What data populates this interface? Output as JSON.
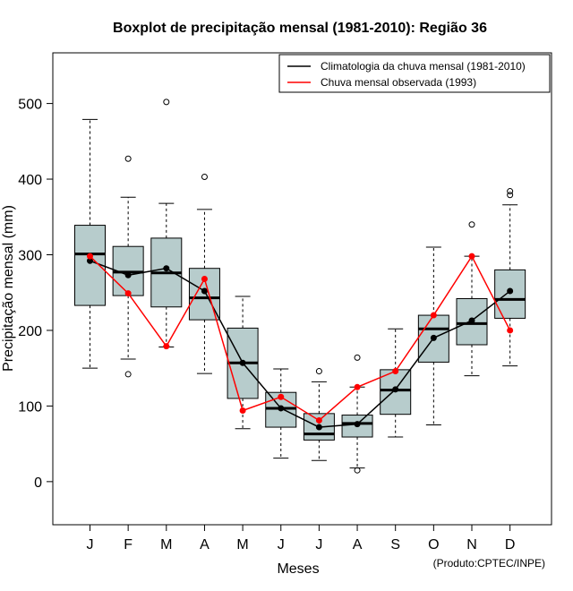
{
  "chart_data": {
    "type": "boxplot",
    "title": "Boxplot de precipitação mensal (1981-2010): Região 36",
    "xlabel": "Meses",
    "ylabel": "Precipitação mensal (mm)",
    "ylim": [
      -57,
      567
    ],
    "yticks": [
      0,
      100,
      200,
      300,
      400,
      500
    ],
    "categories": [
      "J",
      "F",
      "M",
      "A",
      "M",
      "J",
      "J",
      "A",
      "S",
      "O",
      "N",
      "D"
    ],
    "boxes": [
      {
        "whisker_low": 150,
        "q1": 233,
        "median": 301,
        "q3": 339,
        "whisker_high": 479,
        "outliers": []
      },
      {
        "whisker_low": 162,
        "q1": 246,
        "median": 277,
        "q3": 311,
        "whisker_high": 376,
        "outliers": [
          427,
          142
        ]
      },
      {
        "whisker_low": 178,
        "q1": 231,
        "median": 276,
        "q3": 322,
        "whisker_high": 368,
        "outliers": [
          502
        ]
      },
      {
        "whisker_low": 143,
        "q1": 214,
        "median": 243,
        "q3": 282,
        "whisker_high": 360,
        "outliers": [
          403
        ]
      },
      {
        "whisker_low": 70,
        "q1": 110,
        "median": 157,
        "q3": 203,
        "whisker_high": 245,
        "outliers": []
      },
      {
        "whisker_low": 31,
        "q1": 72,
        "median": 97,
        "q3": 118,
        "whisker_high": 149,
        "outliers": []
      },
      {
        "whisker_low": 28,
        "q1": 55,
        "median": 63,
        "q3": 90,
        "whisker_high": 132,
        "outliers": [
          146
        ]
      },
      {
        "whisker_low": 18,
        "q1": 59,
        "median": 77,
        "q3": 88,
        "whisker_high": 125,
        "outliers": [
          164,
          15
        ]
      },
      {
        "whisker_low": 59,
        "q1": 89,
        "median": 121,
        "q3": 148,
        "whisker_high": 202,
        "outliers": []
      },
      {
        "whisker_low": 75,
        "q1": 158,
        "median": 202,
        "q3": 220,
        "whisker_high": 310,
        "outliers": []
      },
      {
        "whisker_low": 140,
        "q1": 181,
        "median": 209,
        "q3": 242,
        "whisker_high": 298,
        "outliers": [
          340
        ]
      },
      {
        "whisker_low": 153,
        "q1": 216,
        "median": 241,
        "q3": 280,
        "whisker_high": 366,
        "outliers": [
          384,
          379
        ]
      }
    ],
    "series": [
      {
        "name": "Climatologia da chuva mensal (1981-2010)",
        "color": "#000000",
        "values": [
          292,
          273,
          282,
          252,
          157,
          97,
          72,
          76,
          122,
          190,
          213,
          252
        ]
      },
      {
        "name": "Chuva mensal observada (1993)",
        "color": "#ff0000",
        "values": [
          298,
          249,
          179,
          268,
          94,
          112,
          81,
          125,
          146,
          220,
          298,
          200
        ]
      }
    ],
    "legend_position": "top-right",
    "box_fill": "#b7cccc",
    "credit": "(Produto:CPTEC/INPE)"
  }
}
